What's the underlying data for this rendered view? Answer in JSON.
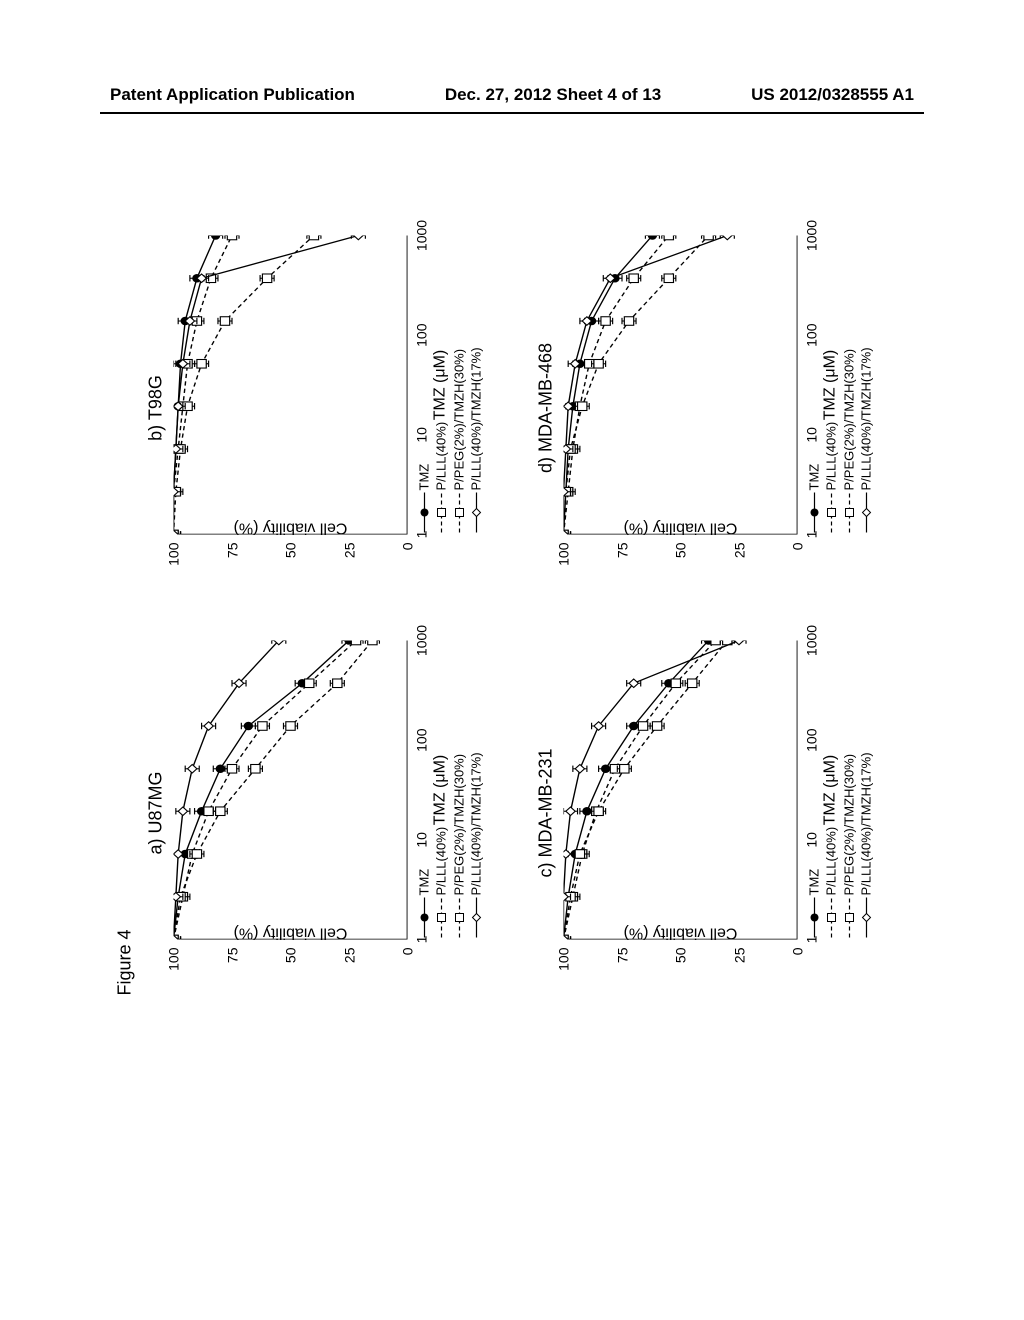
{
  "header": {
    "left": "Patent Application Publication",
    "center": "Dec. 27, 2012  Sheet 4 of 13",
    "right": "US 2012/0328555 A1"
  },
  "figure_caption": "Figure 4",
  "ylabel": "Cell viability (%)",
  "xlabel": "TMZ (μM)",
  "y_ticks": [
    0,
    25,
    50,
    75,
    100
  ],
  "x_ticks": [
    1,
    10,
    100,
    1000
  ],
  "x_tick_labels": [
    "1",
    "10",
    "100",
    "1000"
  ],
  "legend_items": [
    "TMZ",
    "P/LLL(40%)",
    "P/PEG(2%)/TMZH(30%)",
    "P/LLL(40%)/TMZH(17%)"
  ],
  "panels": [
    {
      "title": "a) U87MG",
      "series": [
        {
          "y": [
            100,
            98,
            95,
            88,
            80,
            68,
            45,
            25
          ],
          "marker": "fcircle",
          "dash": false
        },
        {
          "y": [
            100,
            96,
            92,
            85,
            75,
            62,
            42,
            22
          ],
          "marker": "osquare",
          "dash": true
        },
        {
          "y": [
            100,
            97,
            90,
            80,
            65,
            50,
            30,
            15
          ],
          "marker": "osquare2",
          "dash": true
        },
        {
          "y": [
            100,
            99,
            98,
            96,
            92,
            85,
            72,
            55
          ],
          "marker": "odiamond",
          "dash": false
        }
      ]
    },
    {
      "title": "b) T98G",
      "series": [
        {
          "y": [
            100,
            100,
            99,
            98,
            97,
            95,
            90,
            82
          ],
          "marker": "fcircle",
          "dash": false
        },
        {
          "y": [
            100,
            100,
            98,
            96,
            94,
            90,
            84,
            75
          ],
          "marker": "osquare",
          "dash": true
        },
        {
          "y": [
            100,
            99,
            97,
            94,
            88,
            78,
            60,
            40
          ],
          "marker": "osquare2",
          "dash": true
        },
        {
          "y": [
            100,
            100,
            99,
            98,
            96,
            93,
            88,
            21
          ],
          "marker": "odiamond",
          "dash": false
        }
      ]
    },
    {
      "title": "c) MDA-MB-231",
      "series": [
        {
          "y": [
            100,
            98,
            95,
            90,
            82,
            70,
            55,
            38
          ],
          "marker": "fcircle",
          "dash": false
        },
        {
          "y": [
            100,
            96,
            92,
            86,
            78,
            66,
            52,
            35
          ],
          "marker": "osquare",
          "dash": true
        },
        {
          "y": [
            100,
            97,
            93,
            85,
            74,
            60,
            45,
            30
          ],
          "marker": "osquare2",
          "dash": true
        },
        {
          "y": [
            100,
            100,
            99,
            97,
            93,
            85,
            70,
            25
          ],
          "marker": "odiamond",
          "dash": false
        }
      ]
    },
    {
      "title": "d) MDA-MB-468",
      "series": [
        {
          "y": [
            100,
            99,
            98,
            96,
            93,
            88,
            78,
            62
          ],
          "marker": "fcircle",
          "dash": false
        },
        {
          "y": [
            100,
            98,
            96,
            93,
            89,
            82,
            70,
            55
          ],
          "marker": "osquare",
          "dash": true
        },
        {
          "y": [
            100,
            99,
            97,
            92,
            85,
            72,
            55,
            38
          ],
          "marker": "osquare2",
          "dash": true
        },
        {
          "y": [
            100,
            100,
            99,
            98,
            95,
            90,
            80,
            30
          ],
          "marker": "odiamond",
          "dash": false
        }
      ]
    }
  ],
  "x_positions": [
    0,
    0.143,
    0.286,
    0.429,
    0.571,
    0.714,
    0.857,
    1.0
  ],
  "err_val": 3
}
